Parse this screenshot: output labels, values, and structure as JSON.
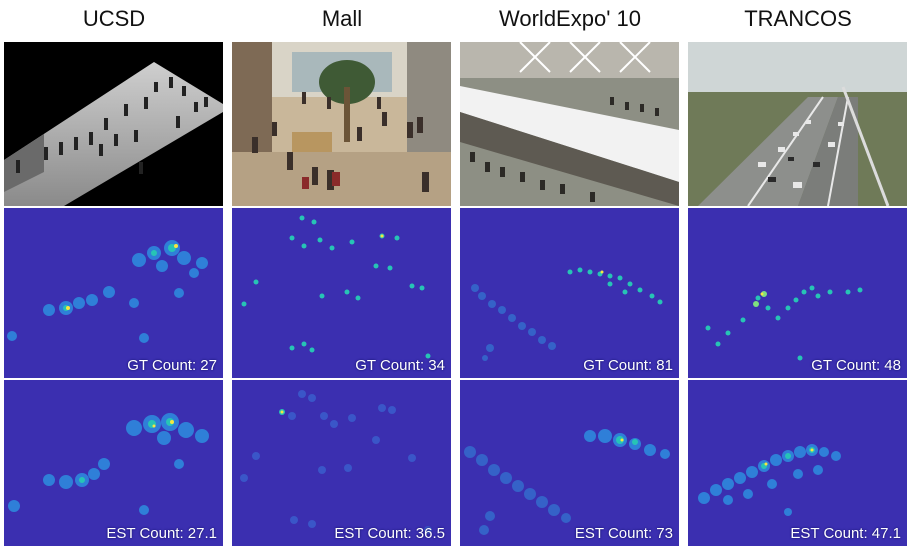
{
  "datasets": [
    {
      "title": "UCSD",
      "gt_label": "GT Count: 27",
      "est_label": "EST Count: 27.1",
      "gt_count": 27,
      "est_count": 27.1
    },
    {
      "title": "Mall",
      "gt_label": "GT Count: 34",
      "est_label": "EST Count: 36.5",
      "gt_count": 34,
      "est_count": 36.5
    },
    {
      "title": "WorldExpo' 10",
      "gt_label": "GT Count: 81",
      "est_label": "EST Count: 73",
      "gt_count": 81,
      "est_count": 73
    },
    {
      "title": "TRANCOS",
      "gt_label": "GT Count: 48",
      "est_label": "EST Count: 47.1",
      "gt_count": 48,
      "est_count": 47.1
    }
  ],
  "colors": {
    "density_background": "#3b2fb0",
    "density_low": "#2f7fd8",
    "density_mid": "#27c4b5",
    "density_high": "#f5e642",
    "label_text": "#ffffff"
  }
}
